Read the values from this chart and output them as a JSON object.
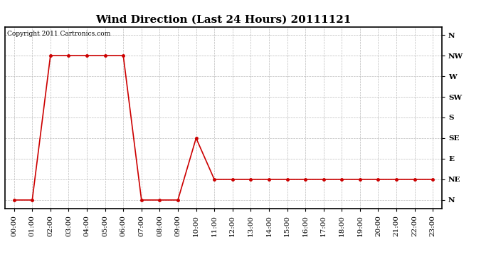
{
  "title": "Wind Direction (Last 24 Hours) 20111121",
  "copyright_text": "Copyright 2011 Cartronics.com",
  "x_labels": [
    "00:00",
    "01:00",
    "02:00",
    "03:00",
    "04:00",
    "05:00",
    "06:00",
    "07:00",
    "08:00",
    "09:00",
    "10:00",
    "11:00",
    "12:00",
    "13:00",
    "14:00",
    "15:00",
    "16:00",
    "17:00",
    "18:00",
    "19:00",
    "20:00",
    "21:00",
    "22:00",
    "23:00"
  ],
  "y_ticks": [
    0,
    1,
    2,
    3,
    4,
    5,
    6,
    7,
    8
  ],
  "y_labels": [
    "N",
    "NE",
    "E",
    "SE",
    "S",
    "SW",
    "W",
    "NW",
    "N"
  ],
  "data_y": [
    0,
    0,
    7,
    7,
    7,
    7,
    7,
    0,
    0,
    0,
    3,
    1,
    1,
    1,
    1,
    1,
    1,
    1,
    1,
    1,
    1,
    1,
    1,
    1
  ],
  "line_color": "#cc0000",
  "marker": "o",
  "marker_size": 2.5,
  "line_width": 1.2,
  "bg_color": "#ffffff",
  "grid_color": "#bbbbbb",
  "title_fontsize": 11,
  "axis_label_fontsize": 7.5,
  "copyright_fontsize": 6.5
}
